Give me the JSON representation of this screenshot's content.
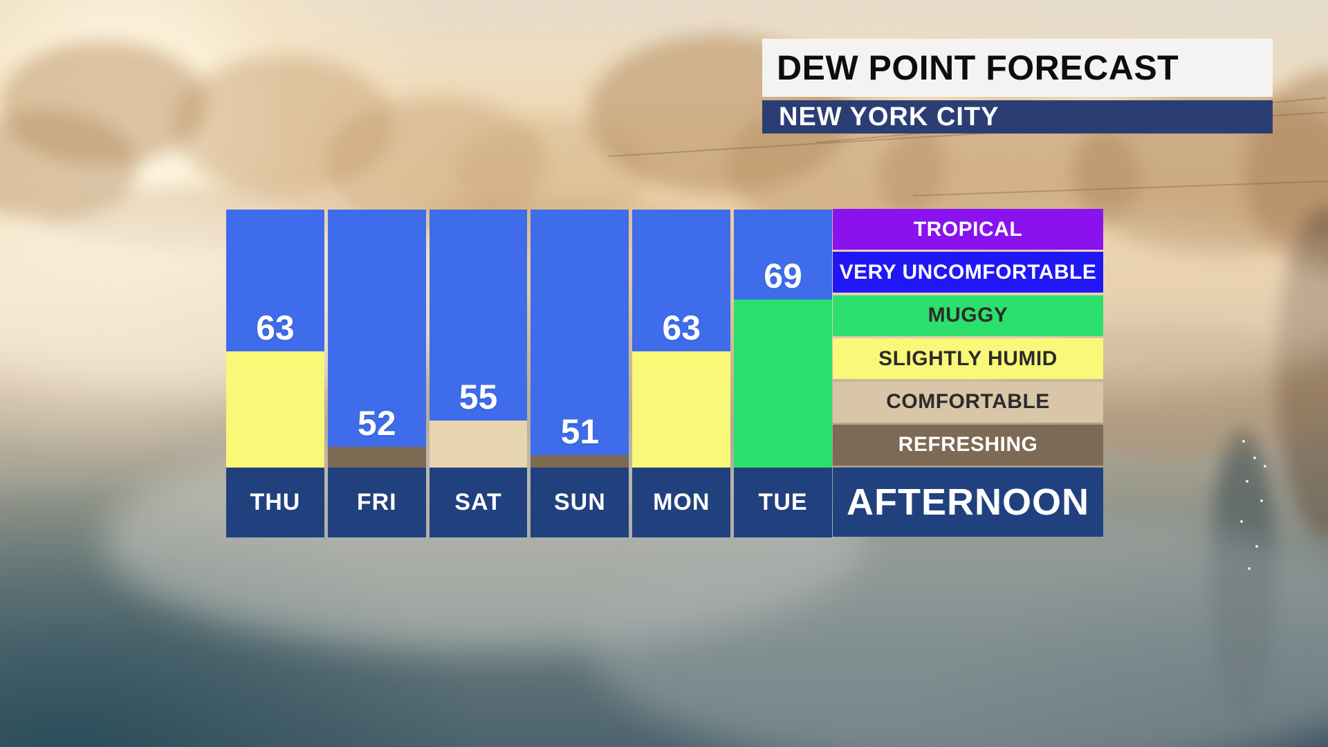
{
  "header": {
    "title": "DEW POINT FORECAST",
    "subtitle": "NEW YORK CITY"
  },
  "chart_data": {
    "type": "bar",
    "title": "DEW POINT FORECAST",
    "location": "NEW YORK CITY",
    "time_label": "AFTERNOON",
    "categories": [
      "THU",
      "FRI",
      "SAT",
      "SUN",
      "MON",
      "TUE"
    ],
    "values": [
      63,
      52,
      55,
      51,
      63,
      69
    ],
    "comfort_levels": [
      "SLIGHTLY HUMID",
      "REFRESHING",
      "COMFORTABLE",
      "REFRESHING",
      "SLIGHTLY HUMID",
      "MUGGY"
    ],
    "legend_position": "right",
    "grid": false
  },
  "legend": {
    "items": [
      {
        "label": "TROPICAL",
        "bg": "#8A12EE",
        "text": "#FFFFFF"
      },
      {
        "label": "VERY UNCOMFORTABLE",
        "bg": "#1F17F5",
        "text": "#FFFFFF"
      },
      {
        "label": "MUGGY",
        "bg": "#2BE06C",
        "text": "#2B2B2B"
      },
      {
        "label": "SLIGHTLY HUMID",
        "bg": "#F9F878",
        "text": "#2B2B2B"
      },
      {
        "label": "COMFORTABLE",
        "bg": "#D9C5A7",
        "text": "#2B2B2B"
      },
      {
        "label": "REFRESHING",
        "bg": "#7C6A54",
        "text": "#FFFFFF"
      }
    ],
    "footer": {
      "label": "AFTERNOON",
      "bg": "#21407E",
      "text": "#FFFFFF"
    }
  },
  "colors": {
    "bar_blue": "#3E6CEA",
    "day_cell_navy": "#21407E",
    "city_bar_navy": "#2B3E74",
    "title_box_bg": "#F4F3F1",
    "title_text": "#0D0D0D",
    "city_text": "#FFFFFF",
    "value_text": "#FFFFFF",
    "bar_fill": {
      "SLIGHTLY HUMID": "#F9F878",
      "COMFORTABLE": "#E7D5B0",
      "REFRESHING": "#7D6A52",
      "MUGGY": "#2BE06C"
    }
  }
}
